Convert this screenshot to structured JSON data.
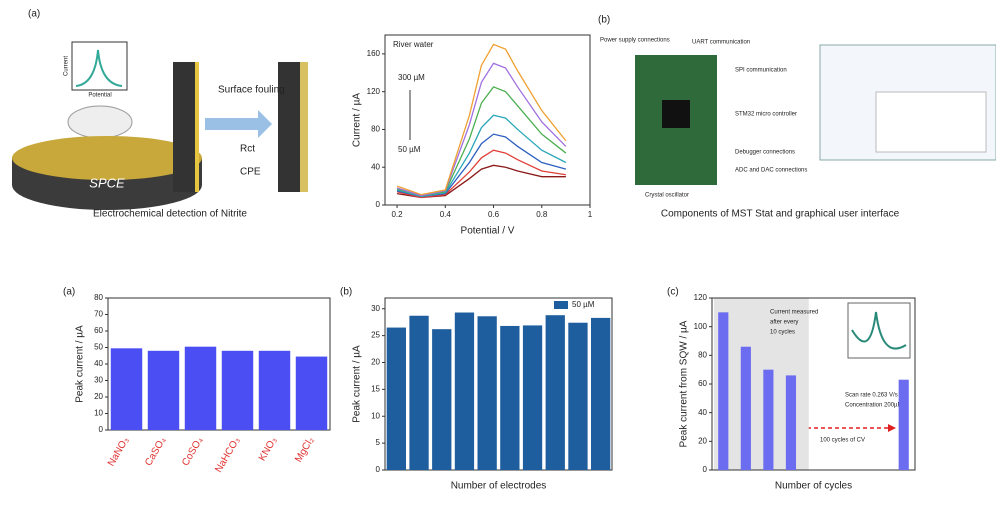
{
  "figures": {
    "left": {
      "panel": "(a)",
      "inset_y": "Current",
      "inset_x": "Potential",
      "fouling": "Surface fouling",
      "rct": "Rct",
      "cpe": "CPE",
      "electrode": "SPCE",
      "caption": "Electrochemical detection of Nitrite"
    },
    "right": {
      "panel": "(b)",
      "labels": [
        "Power supply connections",
        "UART communication",
        "SPI communication",
        "STM32 micro controller",
        "Debugger connections",
        "ADC and DAC connections",
        "Crystal oscillator"
      ],
      "caption": "Components of MST Stat and graphical user interface"
    }
  },
  "chart_data": [
    {
      "type": "line",
      "title": "River water",
      "xlabel": "Potential / V",
      "ylabel": "Current / µA",
      "annotations": [
        "300 µM",
        "50 µM"
      ],
      "x": [
        0.2,
        0.3,
        0.4,
        0.5,
        0.55,
        0.6,
        0.65,
        0.7,
        0.8,
        0.9
      ],
      "series": [
        {
          "color": "#8b1a1a",
          "values": [
            12,
            8,
            10,
            28,
            38,
            42,
            40,
            36,
            30,
            30
          ]
        },
        {
          "color": "#e0403a",
          "values": [
            14,
            8,
            11,
            35,
            50,
            58,
            55,
            48,
            36,
            32
          ]
        },
        {
          "color": "#2d5fc0",
          "values": [
            15,
            9,
            12,
            45,
            65,
            75,
            72,
            62,
            45,
            38
          ]
        },
        {
          "color": "#2aa7b8",
          "values": [
            16,
            9,
            13,
            55,
            82,
            95,
            92,
            80,
            58,
            45
          ]
        },
        {
          "color": "#4caf50",
          "values": [
            17,
            10,
            14,
            70,
            108,
            125,
            120,
            105,
            75,
            55
          ]
        },
        {
          "color": "#a070e0",
          "values": [
            18,
            10,
            15,
            85,
            130,
            150,
            145,
            125,
            88,
            62
          ]
        },
        {
          "color": "#f0a030",
          "values": [
            20,
            11,
            16,
            95,
            148,
            170,
            165,
            142,
            100,
            68
          ]
        }
      ],
      "xlim": [
        0.15,
        1.0
      ],
      "xticks": [
        0.2,
        0.4,
        0.6,
        0.8,
        1
      ],
      "ylim": [
        0,
        180
      ],
      "yticks": [
        0,
        40,
        80,
        120,
        160
      ]
    },
    {
      "type": "bar",
      "panel": "(a)",
      "ylabel": "Peak current / µA",
      "color": "#4b4ef2",
      "label_color": "#e03030",
      "categories": [
        "NaNO₃",
        "CaSO₄",
        "CoSO₄",
        "NaHCO₃",
        "KNO₃",
        "MgCl₂"
      ],
      "values": [
        49.5,
        48,
        50.5,
        48,
        48,
        44.5
      ],
      "ylim": [
        0,
        80
      ],
      "yticks": [
        0,
        10,
        20,
        30,
        40,
        50,
        60,
        70,
        80
      ]
    },
    {
      "type": "bar",
      "panel": "(b)",
      "ylabel": "Peak current / µA",
      "xlabel": "Number of electrodes",
      "categories": [
        null,
        null,
        null,
        null,
        null,
        null,
        null,
        null,
        null,
        null
      ],
      "series": [
        {
          "name": "50 µM",
          "color": "#1f5e9e",
          "values": [
            26.5,
            28.7,
            26.2,
            29.3,
            28.6,
            26.8,
            26.9,
            28.8,
            27.4,
            28.3
          ]
        }
      ],
      "ylim": [
        0,
        32
      ],
      "yticks": [
        0,
        5,
        10,
        15,
        20,
        25,
        30
      ]
    },
    {
      "type": "bar",
      "panel": "(c)",
      "ylabel": "Peak current from SQW / µA",
      "xlabel": "Number of cycles",
      "color": "#6b6cf0",
      "annotations": [
        "Current measured",
        "after every",
        "10 cycles",
        "Scan rate 0.263 V/s",
        "Concentration 200µM",
        "100 cycles of CV"
      ],
      "categories": [
        null,
        null,
        null,
        null,
        null,
        null,
        null,
        null,
        null
      ],
      "values": [
        110,
        86,
        70,
        66,
        null,
        null,
        null,
        null,
        63
      ],
      "ylim": [
        0,
        120
      ],
      "yticks": [
        0,
        20,
        40,
        60,
        80,
        100,
        120
      ]
    }
  ]
}
